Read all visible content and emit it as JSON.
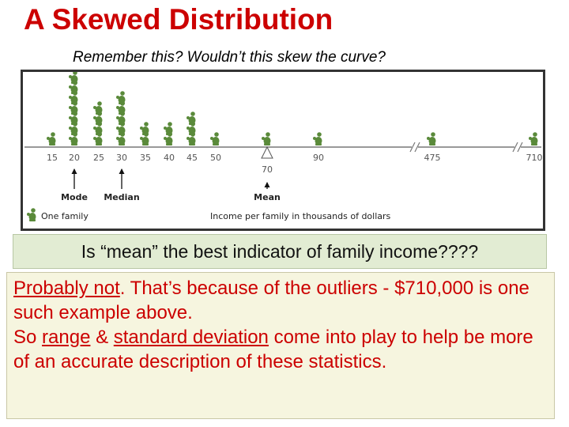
{
  "slide": {
    "title": "A Skewed Distribution",
    "subtitle": "Remember this? Wouldn’t this skew the curve?"
  },
  "figure": {
    "axis_ticks": [
      "15",
      "20",
      "25",
      "30",
      "35",
      "40",
      "45",
      "50",
      "70",
      "90",
      "475",
      "710"
    ],
    "families_per_income": [
      {
        "income": "15",
        "families": 1
      },
      {
        "income": "20",
        "families": 7
      },
      {
        "income": "25",
        "families": 4
      },
      {
        "income": "30",
        "families": 5
      },
      {
        "income": "35",
        "families": 2
      },
      {
        "income": "40",
        "families": 2
      },
      {
        "income": "45",
        "families": 3
      },
      {
        "income": "50",
        "families": 1
      },
      {
        "income": "70",
        "families": 1
      },
      {
        "income": "90",
        "families": 1
      },
      {
        "income": "475",
        "families": 1
      },
      {
        "income": "710",
        "families": 1
      }
    ],
    "mode_label": "Mode",
    "median_label": "Median",
    "mean_label": "Mean",
    "legend_label": "One family",
    "axis_caption": "Income per family in thousands of dollars",
    "figure_color": "#5a8a3a"
  },
  "question": "Is “mean” the best indicator of family income????",
  "answer": {
    "part1_underlined": "Probably not",
    "part1_rest": ". That’s because of the outliers - $710,000 is one such example above.",
    "part2_prefix": "So ",
    "range_term": "range",
    "amp": " & ",
    "sd_term": "standard deviation",
    "part2_rest": " come into play to help be more of an accurate description of these statistics."
  }
}
